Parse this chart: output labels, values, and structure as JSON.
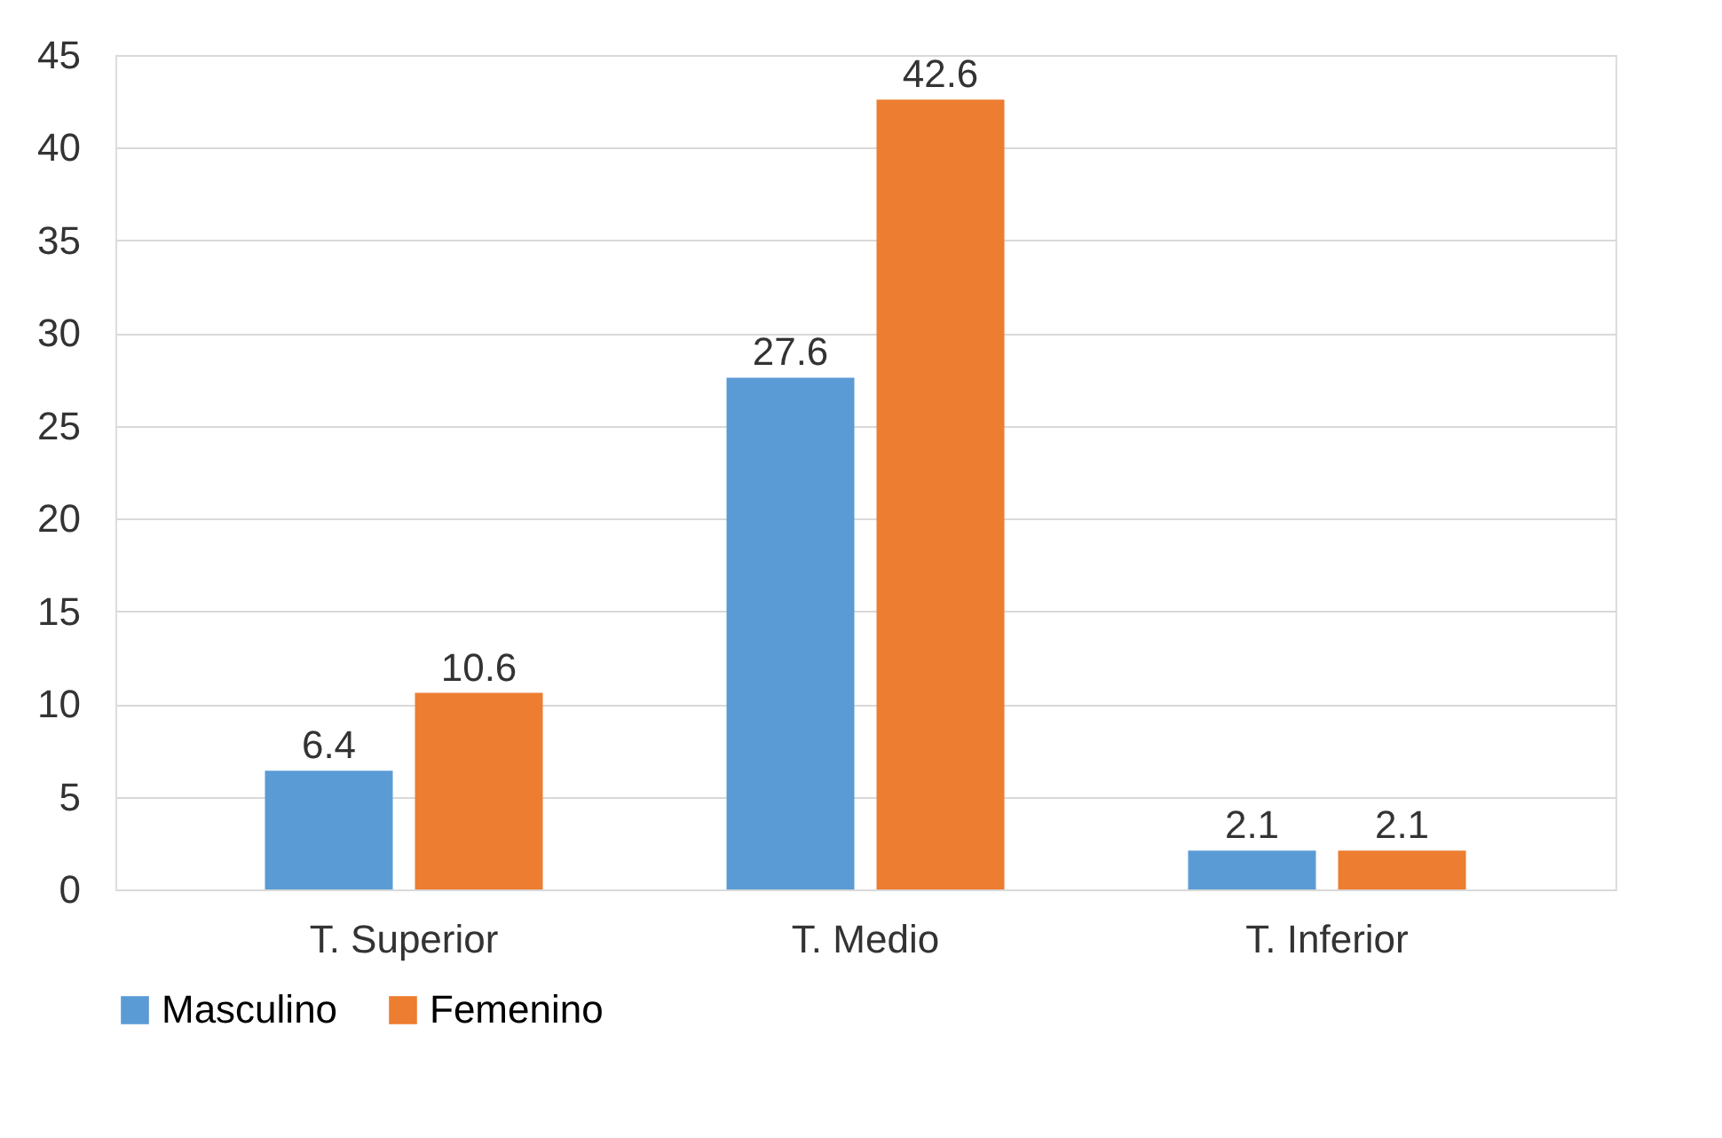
{
  "chart_data": {
    "type": "bar",
    "categories": [
      "T. Superior",
      "T. Medio",
      "T. Inferior"
    ],
    "series": [
      {
        "name": "Masculino",
        "color": "#5b9bd5",
        "values": [
          6.4,
          27.6,
          2.1
        ]
      },
      {
        "name": "Femenino",
        "color": "#ed7d31",
        "values": [
          10.6,
          42.6,
          2.1
        ]
      }
    ],
    "ylim": [
      0,
      45
    ],
    "yticks": [
      0,
      5,
      10,
      15,
      20,
      25,
      30,
      35,
      40,
      45
    ],
    "grid": "y",
    "legend": "bottom",
    "data_labels": true
  }
}
